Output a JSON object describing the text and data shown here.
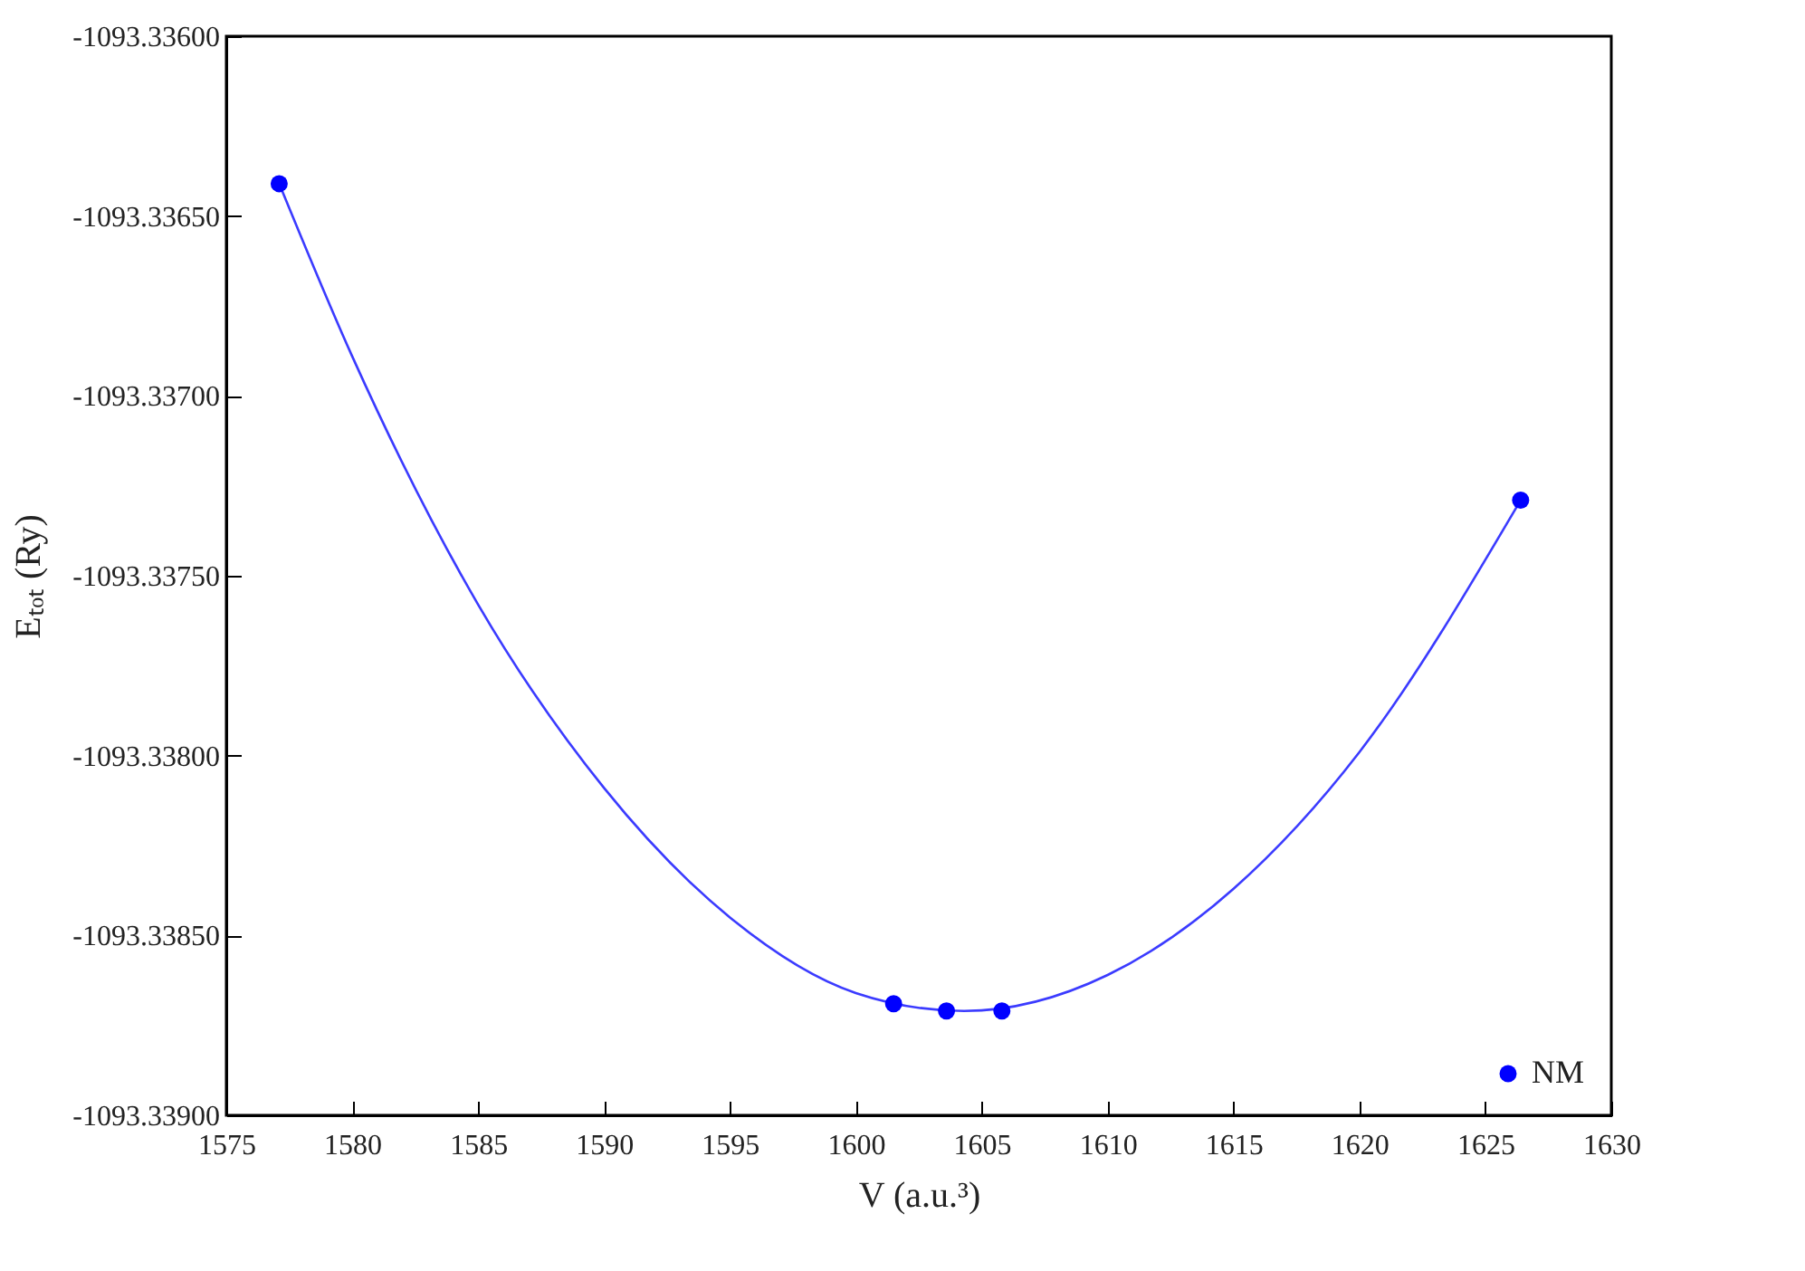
{
  "chart_data": {
    "type": "scatter",
    "xlabel": "V (a.u.³)",
    "ylabel": "Eₜₒₜ (Ry)",
    "xlim": [
      1575,
      1630
    ],
    "xticks": [
      1575,
      1580,
      1585,
      1590,
      1595,
      1600,
      1605,
      1610,
      1615,
      1620,
      1625,
      1630
    ],
    "ylim": [
      -1093.339,
      -1093.336
    ],
    "yticks": [
      {
        "value": -1093.339,
        "label": "-1093.33900"
      },
      {
        "value": -1093.3385,
        "label": "-1093.33850"
      },
      {
        "value": -1093.338,
        "label": "-1093.33800"
      },
      {
        "value": -1093.3375,
        "label": "-1093.33750"
      },
      {
        "value": -1093.337,
        "label": "-1093.33700"
      },
      {
        "value": -1093.3365,
        "label": "-1093.33650"
      },
      {
        "value": -1093.336,
        "label": "-1093.33600"
      }
    ],
    "grid": false,
    "legend": "bottom right",
    "line_style": "solid",
    "series": [
      {
        "type": "line",
        "color": "#3b3bff",
        "x": [
          1577.1,
          1580,
          1585,
          1590,
          1595,
          1600,
          1604.3,
          1610,
          1615,
          1620,
          1626.4
        ],
        "values": [
          -1093.33641,
          -1093.33689,
          -1093.33758,
          -1093.33809,
          -1093.33845,
          -1093.33866,
          -1093.33871,
          -1093.33861,
          -1093.33837,
          -1093.33799,
          -1093.33729
        ]
      },
      {
        "marker": "circle",
        "name": "NM",
        "color": "#0000ff",
        "x": [
          1577.1,
          1601.5,
          1603.6,
          1605.8,
          1626.4
        ],
        "values": [
          -1093.33641,
          -1093.33869,
          -1093.33871,
          -1093.33871,
          -1093.33729
        ]
      }
    ]
  }
}
